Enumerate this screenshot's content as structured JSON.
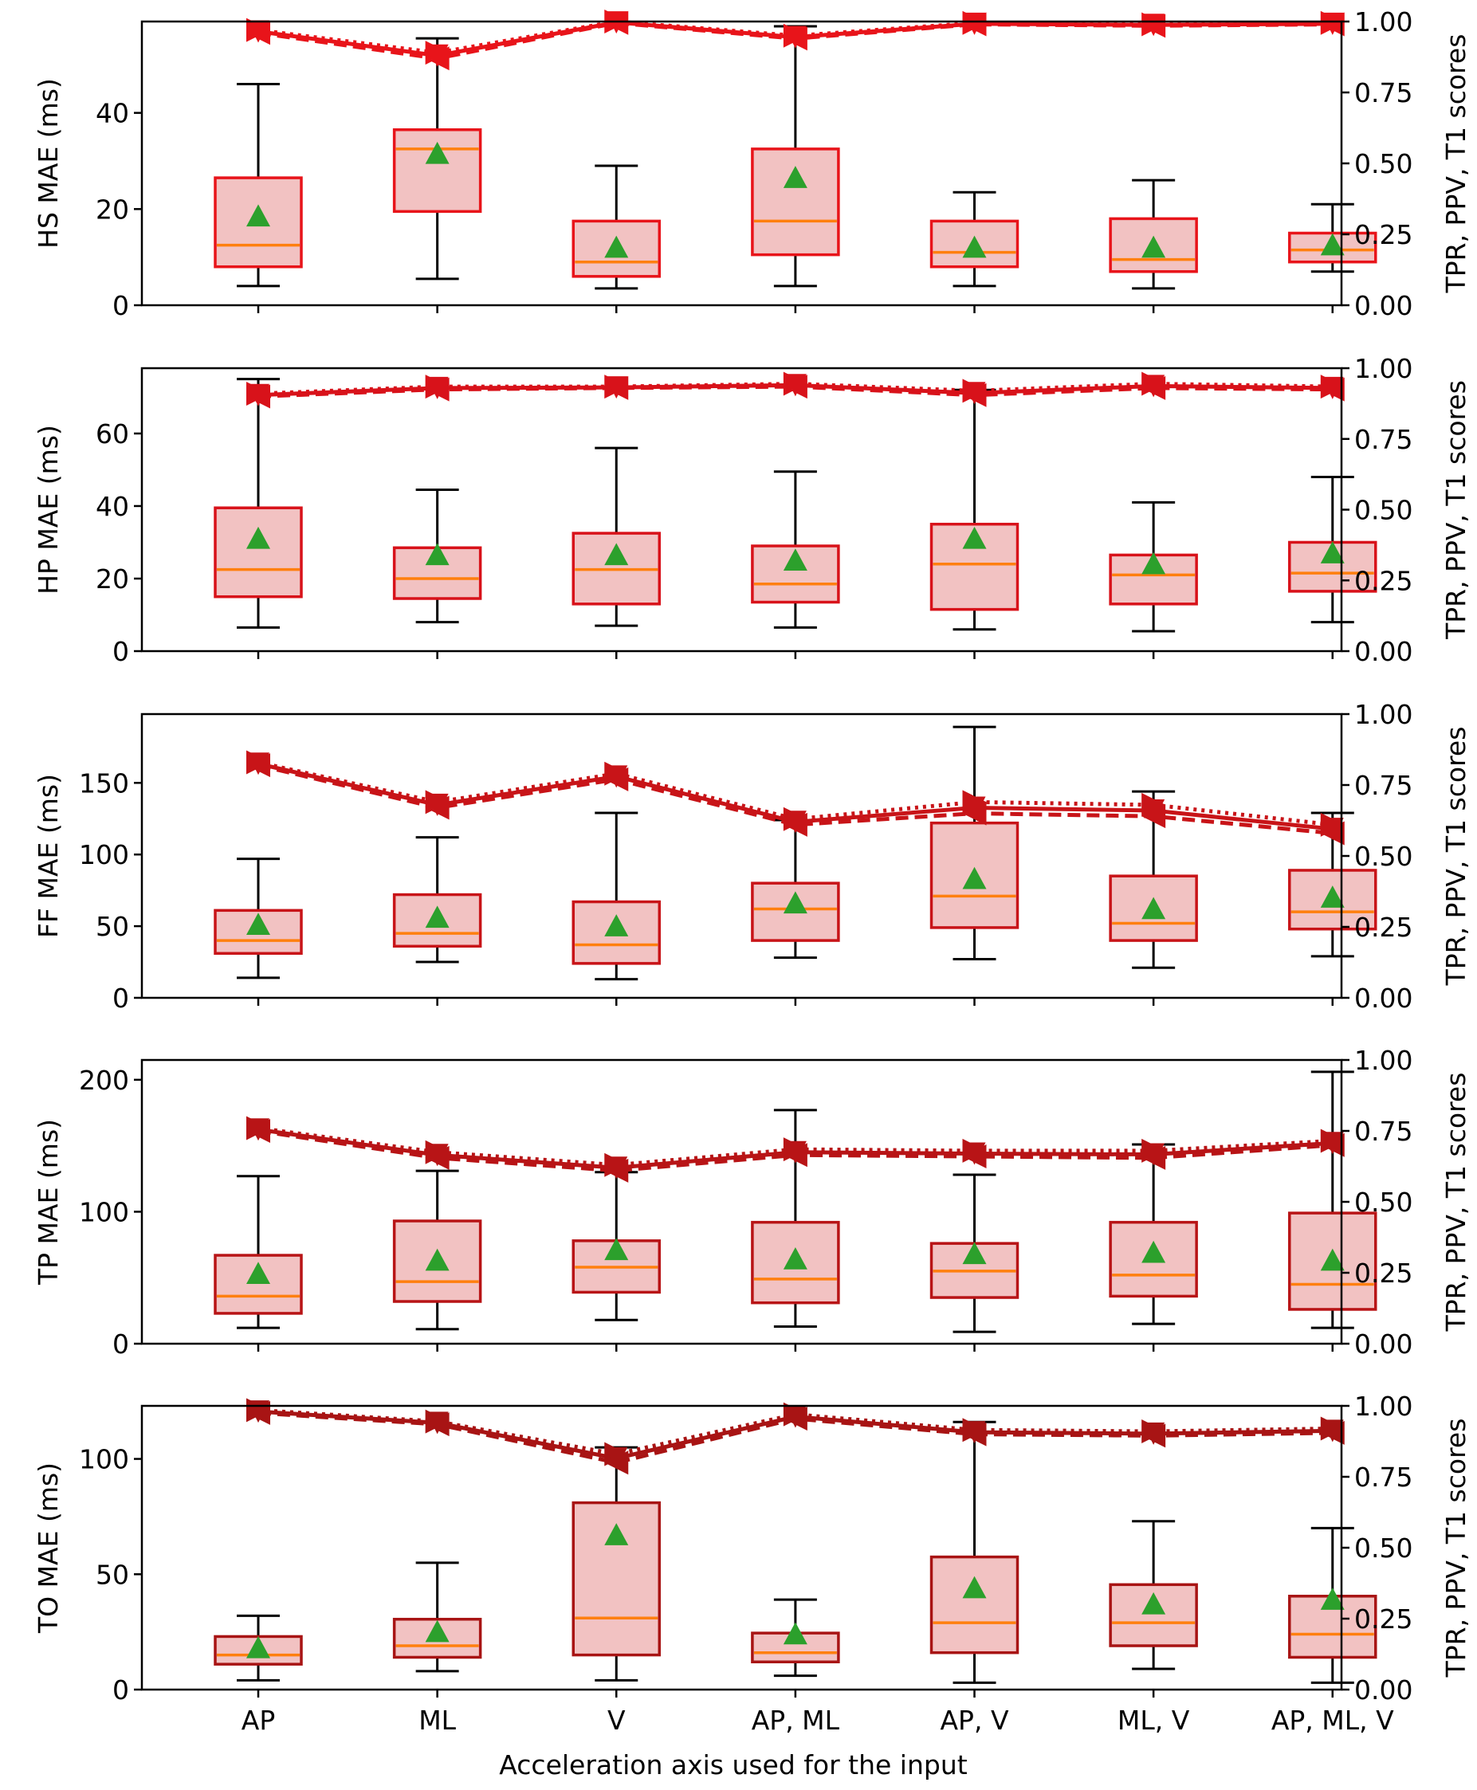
{
  "chart_data": {
    "type": "box",
    "xlabel": "Acceleration axis used for the input",
    "categories": [
      "AP",
      "ML",
      "V",
      "AP, ML",
      "AP, V",
      "ML, V",
      "AP, ML, V"
    ],
    "y2label": "TPR, PPV, T1 scores",
    "y2lim": [
      0,
      1
    ],
    "y2ticks": [
      "0.00",
      "0.25",
      "0.50",
      "0.75",
      "1.00"
    ],
    "series_styles": [
      "TPR (dotted)",
      "PPV (dashed)",
      "T1 (solid)"
    ],
    "panels": [
      {
        "ylabel": "HS MAE (ms)",
        "ylim": [
          0,
          59
        ],
        "yticks": [
          0,
          20,
          40
        ],
        "color": "#e8141a",
        "boxes": [
          {
            "whislo": 4,
            "q1": 8,
            "med": 12.5,
            "q3": 26.5,
            "whishi": 46,
            "mean": 18.5
          },
          {
            "whislo": 5.5,
            "q1": 19.5,
            "med": 32.5,
            "q3": 36.5,
            "whishi": 55.5,
            "mean": 31.5
          },
          {
            "whislo": 3.5,
            "q1": 6,
            "med": 9,
            "q3": 17.5,
            "whishi": 29,
            "mean": 12
          },
          {
            "whislo": 4,
            "q1": 10.5,
            "med": 17.5,
            "q3": 32.5,
            "whishi": 58,
            "mean": 26.5
          },
          {
            "whislo": 4,
            "q1": 8,
            "med": 11,
            "q3": 17.5,
            "whishi": 23.5,
            "mean": 12
          },
          {
            "whislo": 3.5,
            "q1": 7,
            "med": 9.5,
            "q3": 18,
            "whishi": 26,
            "mean": 12
          },
          {
            "whislo": 7,
            "q1": 9,
            "med": 11.5,
            "q3": 15,
            "whishi": 21,
            "mean": 12.5
          }
        ],
        "tpr": [
          0.97,
          0.89,
          1.0,
          0.95,
          0.995,
          0.99,
          0.995
        ],
        "ppv": [
          0.96,
          0.87,
          0.995,
          0.94,
          0.99,
          0.985,
          0.99
        ],
        "t1": [
          0.965,
          0.88,
          0.997,
          0.945,
          0.992,
          0.988,
          0.992
        ]
      },
      {
        "ylabel": "HP MAE (ms)",
        "ylim": [
          0,
          78
        ],
        "yticks": [
          0,
          20,
          40,
          60
        ],
        "color": "#d8121a",
        "boxes": [
          {
            "whislo": 6.5,
            "q1": 15,
            "med": 22.5,
            "q3": 39.5,
            "whishi": 75,
            "mean": 31
          },
          {
            "whislo": 8,
            "q1": 14.5,
            "med": 20,
            "q3": 28.5,
            "whishi": 44.5,
            "mean": 26.5
          },
          {
            "whislo": 7,
            "q1": 13,
            "med": 22.5,
            "q3": 32.5,
            "whishi": 56,
            "mean": 26.5
          },
          {
            "whislo": 6.5,
            "q1": 13.5,
            "med": 18.5,
            "q3": 29,
            "whishi": 49.5,
            "mean": 25
          },
          {
            "whislo": 6,
            "q1": 11.5,
            "med": 24,
            "q3": 35,
            "whishi": 72,
            "mean": 31
          },
          {
            "whislo": 5.5,
            "q1": 13,
            "med": 21,
            "q3": 26.5,
            "whishi": 41,
            "mean": 24
          },
          {
            "whislo": 8,
            "q1": 16.5,
            "med": 21.5,
            "q3": 30,
            "whishi": 48,
            "mean": 27
          }
        ],
        "tpr": [
          0.91,
          0.935,
          0.935,
          0.945,
          0.92,
          0.945,
          0.935
        ],
        "ppv": [
          0.9,
          0.925,
          0.93,
          0.935,
          0.905,
          0.93,
          0.925
        ],
        "t1": [
          0.905,
          0.93,
          0.932,
          0.94,
          0.912,
          0.937,
          0.93
        ]
      },
      {
        "ylabel": "FF MAE (ms)",
        "ylim": [
          0,
          198
        ],
        "yticks": [
          0,
          50,
          100,
          150
        ],
        "color": "#c81418",
        "boxes": [
          {
            "whislo": 14,
            "q1": 31,
            "med": 40,
            "q3": 61,
            "whishi": 97,
            "mean": 51
          },
          {
            "whislo": 25,
            "q1": 36,
            "med": 45,
            "q3": 72,
            "whishi": 112,
            "mean": 56
          },
          {
            "whislo": 13,
            "q1": 24,
            "med": 37,
            "q3": 67,
            "whishi": 129,
            "mean": 50
          },
          {
            "whislo": 28,
            "q1": 40,
            "med": 62,
            "q3": 80,
            "whishi": 124,
            "mean": 66
          },
          {
            "whislo": 27,
            "q1": 49,
            "med": 71,
            "q3": 122,
            "whishi": 189,
            "mean": 83
          },
          {
            "whislo": 21,
            "q1": 40,
            "med": 52,
            "q3": 85,
            "whishi": 144,
            "mean": 62
          },
          {
            "whislo": 29,
            "q1": 48,
            "med": 60,
            "q3": 89,
            "whishi": 129,
            "mean": 70
          }
        ],
        "tpr": [
          0.83,
          0.69,
          0.79,
          0.63,
          0.69,
          0.68,
          0.61
        ],
        "ppv": [
          0.82,
          0.67,
          0.77,
          0.61,
          0.65,
          0.64,
          0.58
        ],
        "t1": [
          0.825,
          0.68,
          0.78,
          0.62,
          0.67,
          0.66,
          0.595
        ]
      },
      {
        "ylabel": "TP MAE (ms)",
        "ylim": [
          0,
          215
        ],
        "yticks": [
          0,
          100,
          200
        ],
        "color": "#b81416",
        "boxes": [
          {
            "whislo": 12,
            "q1": 23,
            "med": 36,
            "q3": 67,
            "whishi": 127,
            "mean": 53
          },
          {
            "whislo": 11,
            "q1": 32,
            "med": 47,
            "q3": 93,
            "whishi": 131,
            "mean": 63
          },
          {
            "whislo": 18,
            "q1": 39,
            "med": 58,
            "q3": 78,
            "whishi": 130,
            "mean": 71
          },
          {
            "whislo": 13,
            "q1": 31,
            "med": 49,
            "q3": 92,
            "whishi": 177,
            "mean": 64
          },
          {
            "whislo": 9,
            "q1": 35,
            "med": 55,
            "q3": 76,
            "whishi": 128,
            "mean": 68
          },
          {
            "whislo": 15,
            "q1": 36,
            "med": 52,
            "q3": 92,
            "whishi": 151,
            "mean": 69
          },
          {
            "whislo": 12,
            "q1": 26,
            "med": 45,
            "q3": 99,
            "whishi": 206,
            "mean": 63
          }
        ],
        "tpr": [
          0.76,
          0.675,
          0.63,
          0.685,
          0.68,
          0.68,
          0.715
        ],
        "ppv": [
          0.75,
          0.655,
          0.61,
          0.665,
          0.66,
          0.655,
          0.7
        ],
        "t1": [
          0.755,
          0.665,
          0.62,
          0.675,
          0.67,
          0.667,
          0.707
        ]
      },
      {
        "ylabel": "TO MAE (ms)",
        "ylim": [
          0,
          123
        ],
        "yticks": [
          0,
          50,
          100
        ],
        "color": "#a81414",
        "boxes": [
          {
            "whislo": 4,
            "q1": 11,
            "med": 15,
            "q3": 23,
            "whishi": 32,
            "mean": 18
          },
          {
            "whislo": 8,
            "q1": 14,
            "med": 19,
            "q3": 30.5,
            "whishi": 55,
            "mean": 25
          },
          {
            "whislo": 4,
            "q1": 15,
            "med": 31,
            "q3": 81,
            "whishi": 105,
            "mean": 67
          },
          {
            "whislo": 6,
            "q1": 12,
            "med": 16,
            "q3": 24.5,
            "whishi": 39,
            "mean": 24
          },
          {
            "whislo": 3,
            "q1": 16,
            "med": 29,
            "q3": 57.5,
            "whishi": 116,
            "mean": 44
          },
          {
            "whislo": 9,
            "q1": 19,
            "med": 29,
            "q3": 45.5,
            "whishi": 73,
            "mean": 37
          },
          {
            "whislo": 3,
            "q1": 14,
            "med": 24,
            "q3": 40.5,
            "whishi": 70,
            "mean": 39
          }
        ],
        "tpr": [
          0.985,
          0.945,
          0.83,
          0.97,
          0.915,
          0.91,
          0.92
        ],
        "ppv": [
          0.975,
          0.935,
          0.8,
          0.955,
          0.9,
          0.895,
          0.905
        ],
        "t1": [
          0.98,
          0.94,
          0.815,
          0.962,
          0.907,
          0.902,
          0.912
        ]
      }
    ]
  }
}
